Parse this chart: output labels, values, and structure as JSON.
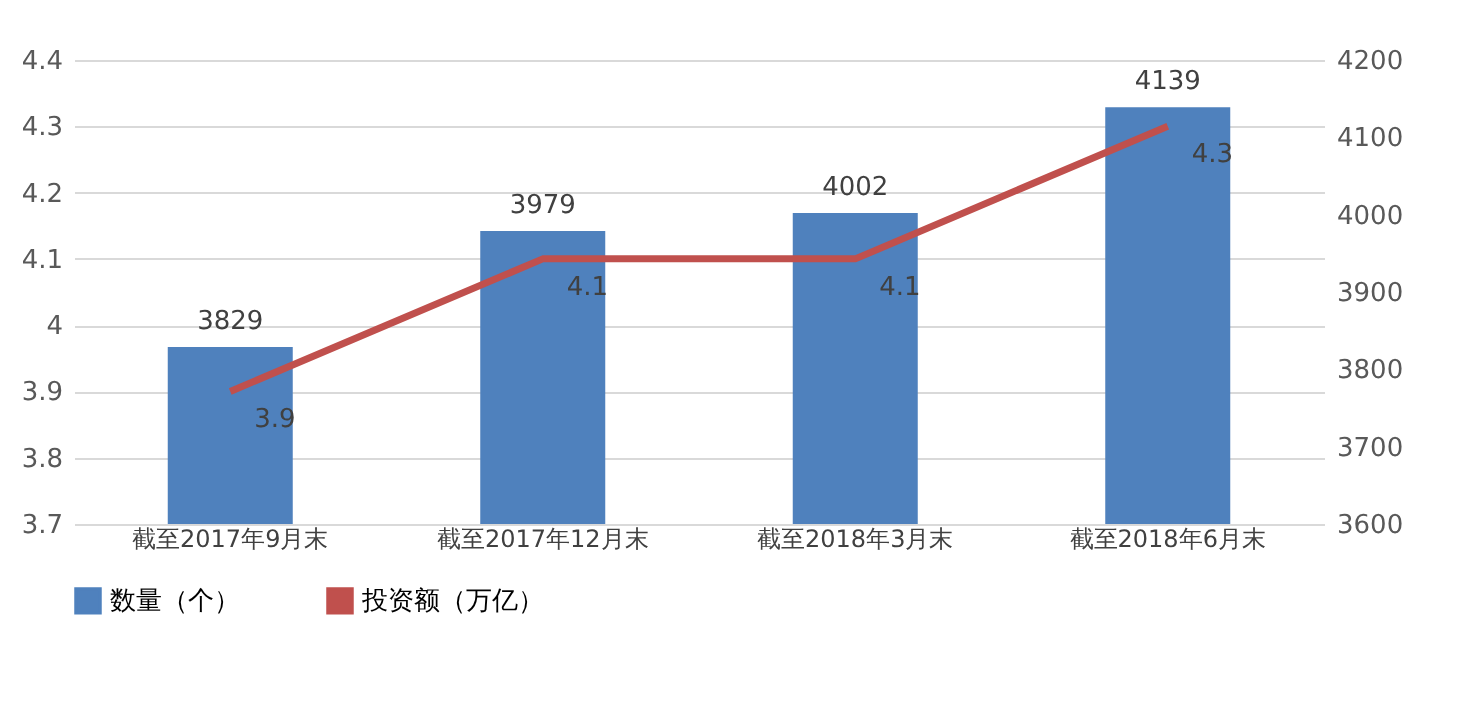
{
  "chart_data": {
    "type": "bar",
    "categories": [
      "截至2017年9月末",
      "截至2017年12月末",
      "截至2018年3月末",
      "截至2018年6月末"
    ],
    "series": [
      {
        "name": "数量（个）",
        "axis": "y2",
        "color": "#4f81bd",
        "values": [
          3829,
          3979,
          4002,
          4139
        ]
      },
      {
        "name": "投资额（万亿）",
        "type": "line",
        "axis": "y",
        "color": "#c0504d",
        "values": [
          3.9,
          4.1,
          4.1,
          4.3
        ]
      }
    ],
    "ylim": [
      3.7,
      4.4
    ],
    "yticks": [
      3.7,
      3.8,
      3.9,
      4,
      4.1,
      4.2,
      4.3,
      4.4
    ],
    "y2lim": [
      3600,
      4200
    ],
    "y2ticks": [
      3600,
      3700,
      3800,
      3900,
      4000,
      4100,
      4200
    ],
    "grid": true,
    "legend": "bottom",
    "data_labels": true,
    "marker": "none"
  }
}
